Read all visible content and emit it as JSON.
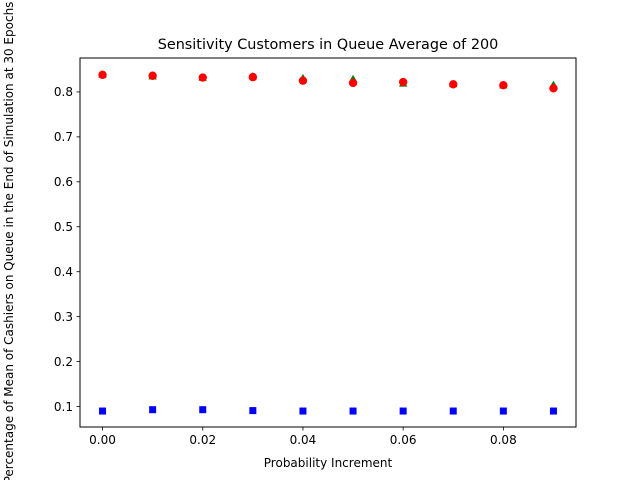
{
  "chart_data": {
    "type": "scatter",
    "title": "Sensitivity Customers in Queue Average of 200",
    "xlabel": "Probability Increment",
    "ylabel": "Percentage of Mean of Cashiers on Queue in the End of Simulation at 30 Epochs",
    "xlim": [
      -0.0045,
      0.0945
    ],
    "ylim": [
      0.0545,
      0.8755
    ],
    "x_ticks": [
      0.0,
      0.02,
      0.04,
      0.06,
      0.08
    ],
    "x_tick_labels": [
      "0.00",
      "0.02",
      "0.04",
      "0.06",
      "0.08"
    ],
    "y_ticks": [
      0.1,
      0.2,
      0.3,
      0.4,
      0.5,
      0.6,
      0.7,
      0.8
    ],
    "y_tick_labels": [
      "0.1",
      "0.2",
      "0.3",
      "0.4",
      "0.5",
      "0.6",
      "0.7",
      "0.8"
    ],
    "grid": false,
    "legend": "none",
    "x": [
      0.0,
      0.01,
      0.02,
      0.03,
      0.04,
      0.05,
      0.06,
      0.07,
      0.08,
      0.09
    ],
    "series": [
      {
        "marker": "square",
        "color": "#0000ff",
        "values": [
          0.09,
          0.093,
          0.093,
          0.091,
          0.09,
          0.09,
          0.09,
          0.09,
          0.09,
          0.09
        ]
      },
      {
        "marker": "triangle",
        "color": "#008000",
        "values": [
          0.838,
          0.834,
          0.831,
          0.834,
          0.83,
          0.828,
          0.818,
          0.817,
          0.814,
          0.815
        ]
      },
      {
        "marker": "circle",
        "color": "#ff0000",
        "values": [
          0.838,
          0.836,
          0.832,
          0.833,
          0.825,
          0.82,
          0.822,
          0.817,
          0.815,
          0.808
        ]
      }
    ]
  }
}
